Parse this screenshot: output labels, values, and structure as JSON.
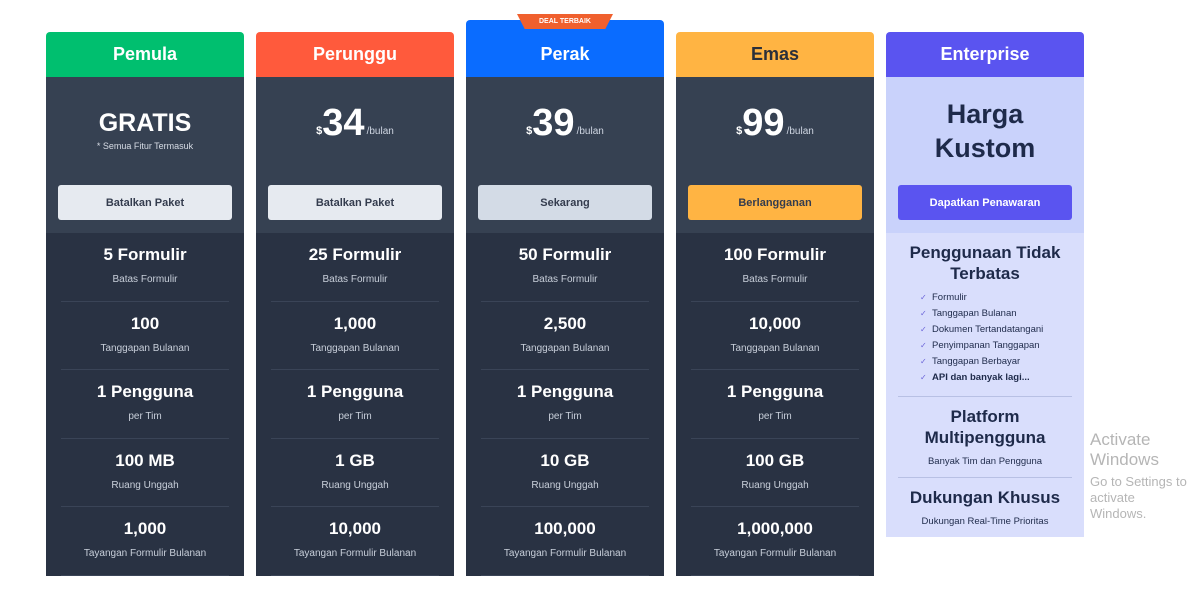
{
  "badge": "DEAL TERBAIK",
  "colors": {
    "pemula": "#00bf6f",
    "perunggu": "#ff5a3c",
    "perak": "#0a6cff",
    "emas": "#ffb443",
    "enterprise": "#5a54f0"
  },
  "plans": [
    {
      "name": "Pemula",
      "price_text": "GRATIS",
      "price_sub": "* Semua Fitur Termasuk",
      "button": "Batalkan Paket",
      "features": [
        {
          "t": "5 Formulir",
          "s": "Batas Formulir"
        },
        {
          "t": "100",
          "s": "Tanggapan Bulanan"
        },
        {
          "t": "1 Pengguna",
          "s": "per Tim"
        },
        {
          "t": "100 MB",
          "s": "Ruang Unggah"
        },
        {
          "t": "1,000",
          "s": "Tayangan Formulir Bulanan"
        }
      ]
    },
    {
      "name": "Perunggu",
      "currency": "$",
      "amount": "34",
      "period": "/bulan",
      "button": "Batalkan Paket",
      "features": [
        {
          "t": "25 Formulir",
          "s": "Batas Formulir"
        },
        {
          "t": "1,000",
          "s": "Tanggapan Bulanan"
        },
        {
          "t": "1 Pengguna",
          "s": "per Tim"
        },
        {
          "t": "1 GB",
          "s": "Ruang Unggah"
        },
        {
          "t": "10,000",
          "s": "Tayangan Formulir Bulanan"
        }
      ]
    },
    {
      "name": "Perak",
      "currency": "$",
      "amount": "39",
      "period": "/bulan",
      "button": "Sekarang",
      "features": [
        {
          "t": "50 Formulir",
          "s": "Batas Formulir"
        },
        {
          "t": "2,500",
          "s": "Tanggapan Bulanan"
        },
        {
          "t": "1 Pengguna",
          "s": "per Tim"
        },
        {
          "t": "10 GB",
          "s": "Ruang Unggah"
        },
        {
          "t": "100,000",
          "s": "Tayangan Formulir Bulanan"
        }
      ]
    },
    {
      "name": "Emas",
      "currency": "$",
      "amount": "99",
      "period": "/bulan",
      "button": "Berlangganan",
      "features": [
        {
          "t": "100 Formulir",
          "s": "Batas Formulir"
        },
        {
          "t": "10,000",
          "s": "Tanggapan Bulanan"
        },
        {
          "t": "1 Pengguna",
          "s": "per Tim"
        },
        {
          "t": "100 GB",
          "s": "Ruang Unggah"
        },
        {
          "t": "1,000,000",
          "s": "Tayangan Formulir Bulanan"
        }
      ]
    }
  ],
  "enterprise": {
    "name": "Enterprise",
    "price_line1": "Harga",
    "price_line2": "Kustom",
    "button": "Dapatkan Penawaran",
    "sections": [
      {
        "title": "Penggunaan Tidak Terbatas",
        "items": [
          "Formulir",
          "Tanggapan Bulanan",
          "Dokumen Tertandatangani",
          "Penyimpanan Tanggapan",
          "Tanggapan Berbayar",
          "API dan banyak lagi..."
        ]
      },
      {
        "title": "Platform Multipengguna",
        "sub": "Banyak Tim dan Pengguna"
      },
      {
        "title": "Dukungan Khusus",
        "sub": "Dukungan Real-Time Prioritas"
      }
    ]
  },
  "watermark": {
    "line1": "Activate Windows",
    "line2": "Go to Settings to activate Windows."
  }
}
